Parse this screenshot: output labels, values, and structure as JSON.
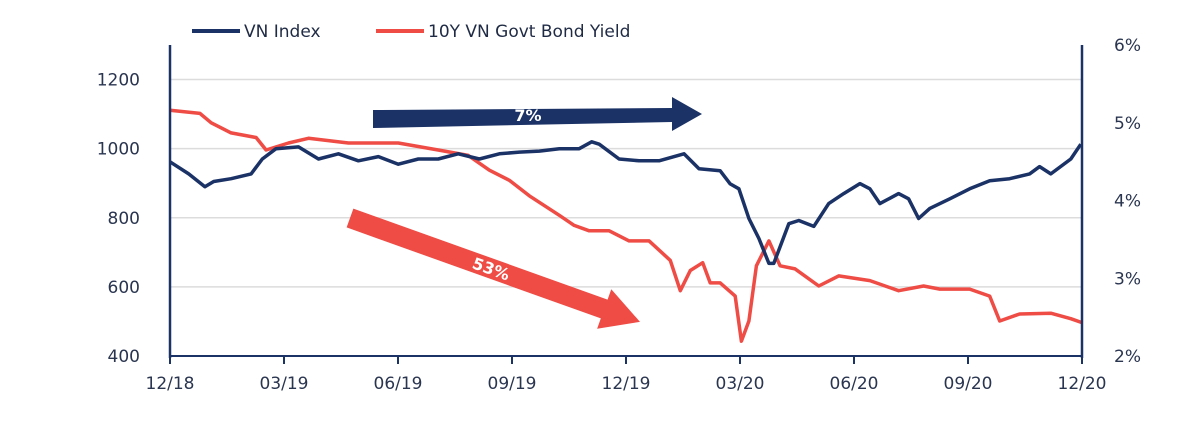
{
  "chart_data": {
    "type": "line",
    "title": "",
    "xlabel": "",
    "ylabel_left": "",
    "ylabel_right": "",
    "x_range": [
      "2018-12-01",
      "2020-12-01"
    ],
    "x_ticks": [
      "12/18",
      "03/19",
      "06/19",
      "09/19",
      "12/19",
      "03/20",
      "06/20",
      "09/20",
      "12/20"
    ],
    "y_left": {
      "range": [
        400,
        1300
      ],
      "ticks": [
        "400",
        "600",
        "800",
        "1000",
        "1200"
      ]
    },
    "y_right": {
      "range": [
        2,
        6
      ],
      "ticks": [
        "2%",
        "3%",
        "4%",
        "5%",
        "6%"
      ]
    },
    "grid": true,
    "legend_position": "top-center",
    "series": [
      {
        "name": "VN Index",
        "axis": "left",
        "color": "#1b3266",
        "points": [
          [
            "2018-12-01",
            962
          ],
          [
            "2018-12-16",
            927
          ],
          [
            "2018-12-29",
            890
          ],
          [
            "2019-01-05",
            905
          ],
          [
            "2019-01-19",
            913
          ],
          [
            "2019-02-04",
            927
          ],
          [
            "2019-02-13",
            970
          ],
          [
            "2019-02-24",
            1000
          ],
          [
            "2019-03-14",
            1005
          ],
          [
            "2019-03-30",
            970
          ],
          [
            "2019-04-15",
            985
          ],
          [
            "2019-05-01",
            965
          ],
          [
            "2019-05-17",
            977
          ],
          [
            "2019-06-02",
            955
          ],
          [
            "2019-06-18",
            970
          ],
          [
            "2019-07-04",
            970
          ],
          [
            "2019-07-20",
            985
          ],
          [
            "2019-08-06",
            970
          ],
          [
            "2019-08-22",
            985
          ],
          [
            "2019-09-07",
            990
          ],
          [
            "2019-09-23",
            993
          ],
          [
            "2019-10-09",
            1000
          ],
          [
            "2019-10-25",
            1000
          ],
          [
            "2019-11-04",
            1020
          ],
          [
            "2019-11-10",
            1013
          ],
          [
            "2019-11-26",
            970
          ],
          [
            "2019-12-12",
            965
          ],
          [
            "2019-12-28",
            965
          ],
          [
            "2020-01-17",
            985
          ],
          [
            "2020-01-29",
            942
          ],
          [
            "2020-02-15",
            936
          ],
          [
            "2020-02-23",
            898
          ],
          [
            "2020-03-01",
            884
          ],
          [
            "2020-03-09",
            798
          ],
          [
            "2020-03-17",
            740
          ],
          [
            "2020-03-25",
            668
          ],
          [
            "2020-03-29",
            668
          ],
          [
            "2020-04-10",
            783
          ],
          [
            "2020-04-18",
            792
          ],
          [
            "2020-04-30",
            775
          ],
          [
            "2020-05-12",
            841
          ],
          [
            "2020-05-24",
            870
          ],
          [
            "2020-06-06",
            899
          ],
          [
            "2020-06-14",
            884
          ],
          [
            "2020-06-22",
            841
          ],
          [
            "2020-07-07",
            870
          ],
          [
            "2020-07-15",
            855
          ],
          [
            "2020-07-23",
            798
          ],
          [
            "2020-08-01",
            827
          ],
          [
            "2020-08-17",
            855
          ],
          [
            "2020-09-02",
            884
          ],
          [
            "2020-09-18",
            907
          ],
          [
            "2020-10-04",
            913
          ],
          [
            "2020-10-20",
            927
          ],
          [
            "2020-10-28",
            948
          ],
          [
            "2020-11-06",
            927
          ],
          [
            "2020-11-22",
            970
          ],
          [
            "2020-11-30",
            1013
          ]
        ]
      },
      {
        "name": "10Y VN Govt Bond Yield",
        "axis": "right",
        "color": "#ee4c45",
        "points": [
          [
            "2018-12-01",
            5.16
          ],
          [
            "2018-12-25",
            5.12
          ],
          [
            "2019-01-03",
            5.0
          ],
          [
            "2019-01-19",
            4.87
          ],
          [
            "2019-02-08",
            4.81
          ],
          [
            "2019-02-16",
            4.65
          ],
          [
            "2019-03-06",
            4.74
          ],
          [
            "2019-03-22",
            4.8
          ],
          [
            "2019-04-23",
            4.74
          ],
          [
            "2019-06-02",
            4.74
          ],
          [
            "2019-07-04",
            4.65
          ],
          [
            "2019-07-28",
            4.58
          ],
          [
            "2019-08-14",
            4.39
          ],
          [
            "2019-08-30",
            4.26
          ],
          [
            "2019-09-15",
            4.06
          ],
          [
            "2019-10-09",
            3.81
          ],
          [
            "2019-10-21",
            3.68
          ],
          [
            "2019-11-02",
            3.61
          ],
          [
            "2019-11-18",
            3.61
          ],
          [
            "2019-12-04",
            3.48
          ],
          [
            "2019-12-20",
            3.48
          ],
          [
            "2020-01-06",
            3.23
          ],
          [
            "2020-01-14",
            2.84
          ],
          [
            "2020-01-22",
            3.1
          ],
          [
            "2020-02-01",
            3.2
          ],
          [
            "2020-02-07",
            2.94
          ],
          [
            "2020-02-15",
            2.94
          ],
          [
            "2020-02-27",
            2.77
          ],
          [
            "2020-03-03",
            2.19
          ],
          [
            "2020-03-09",
            2.45
          ],
          [
            "2020-03-15",
            3.16
          ],
          [
            "2020-03-25",
            3.48
          ],
          [
            "2020-04-03",
            3.16
          ],
          [
            "2020-04-15",
            3.12
          ],
          [
            "2020-05-04",
            2.9
          ],
          [
            "2020-05-20",
            3.03
          ],
          [
            "2020-06-14",
            2.97
          ],
          [
            "2020-07-07",
            2.84
          ],
          [
            "2020-07-27",
            2.9
          ],
          [
            "2020-08-09",
            2.86
          ],
          [
            "2020-09-02",
            2.86
          ],
          [
            "2020-09-18",
            2.77
          ],
          [
            "2020-09-26",
            2.45
          ],
          [
            "2020-10-12",
            2.54
          ],
          [
            "2020-11-06",
            2.55
          ],
          [
            "2020-11-22",
            2.48
          ],
          [
            "2020-12-01",
            2.43
          ]
        ]
      }
    ],
    "annotations": [
      {
        "text": "7%",
        "shape": "arrow",
        "direction": "right",
        "color": "#1b3266"
      },
      {
        "text": "53%",
        "shape": "arrow",
        "direction": "down-right",
        "color": "#ee4c45"
      }
    ]
  }
}
